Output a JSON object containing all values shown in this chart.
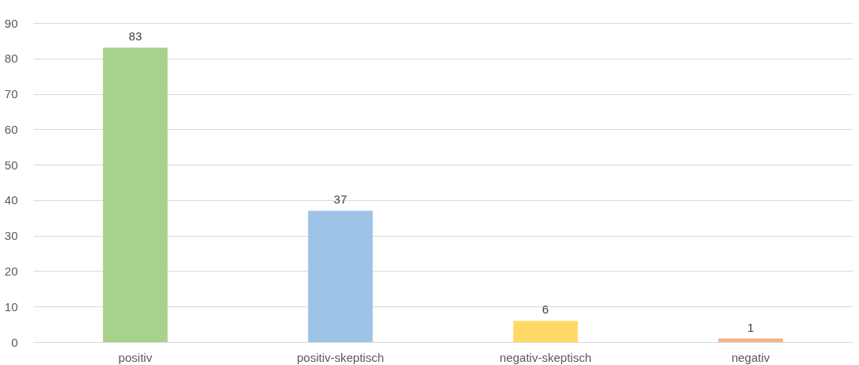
{
  "chart_data": {
    "type": "bar",
    "categories": [
      "positiv",
      "positiv-skeptisch",
      "negativ-skeptisch",
      "negativ"
    ],
    "values": [
      83,
      37,
      6,
      1
    ],
    "colors": [
      "#a9d18e",
      "#9dc3e6",
      "#ffd966",
      "#f4b183"
    ],
    "ylim": [
      0,
      90
    ],
    "yticks": [
      0,
      10,
      20,
      30,
      40,
      50,
      60,
      70,
      80,
      90
    ],
    "grid": "y",
    "data_labels": true
  }
}
